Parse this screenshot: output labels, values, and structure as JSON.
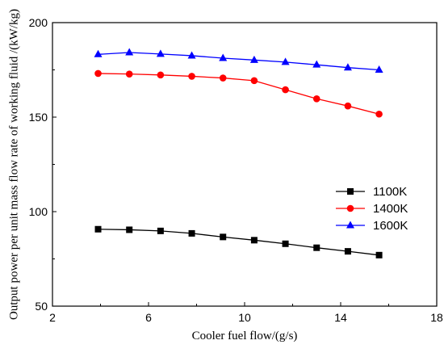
{
  "chart_data": {
    "type": "line",
    "xlabel": "Cooler fuel flow/(g/s)",
    "ylabel": "Output power per unit mass flow rate of working fluid /(kW/kg)",
    "xlim": [
      2,
      18
    ],
    "ylim": [
      50,
      200
    ],
    "xticks": [
      2,
      6,
      10,
      14,
      18
    ],
    "yticks": [
      50,
      100,
      150,
      200
    ],
    "grid": false,
    "legend_position": "right-middle",
    "x": [
      3.9,
      5.2,
      6.5,
      7.8,
      9.1,
      10.4,
      11.7,
      13.0,
      14.3,
      15.6
    ],
    "series": [
      {
        "name": "1100K",
        "color": "#000000",
        "marker": "square",
        "values": [
          90.7,
          90.4,
          89.8,
          88.5,
          86.6,
          84.9,
          83.0,
          80.9,
          79.0,
          77.0
        ]
      },
      {
        "name": "1400K",
        "color": "#ff0000",
        "marker": "circle",
        "values": [
          173.1,
          172.8,
          172.3,
          171.6,
          170.7,
          169.3,
          164.5,
          159.7,
          155.9,
          151.6
        ]
      },
      {
        "name": "1600K",
        "color": "#0000ff",
        "marker": "triangle",
        "values": [
          183.2,
          184.2,
          183.4,
          182.5,
          181.2,
          180.2,
          179.1,
          177.7,
          176.2,
          175.0
        ]
      }
    ]
  }
}
